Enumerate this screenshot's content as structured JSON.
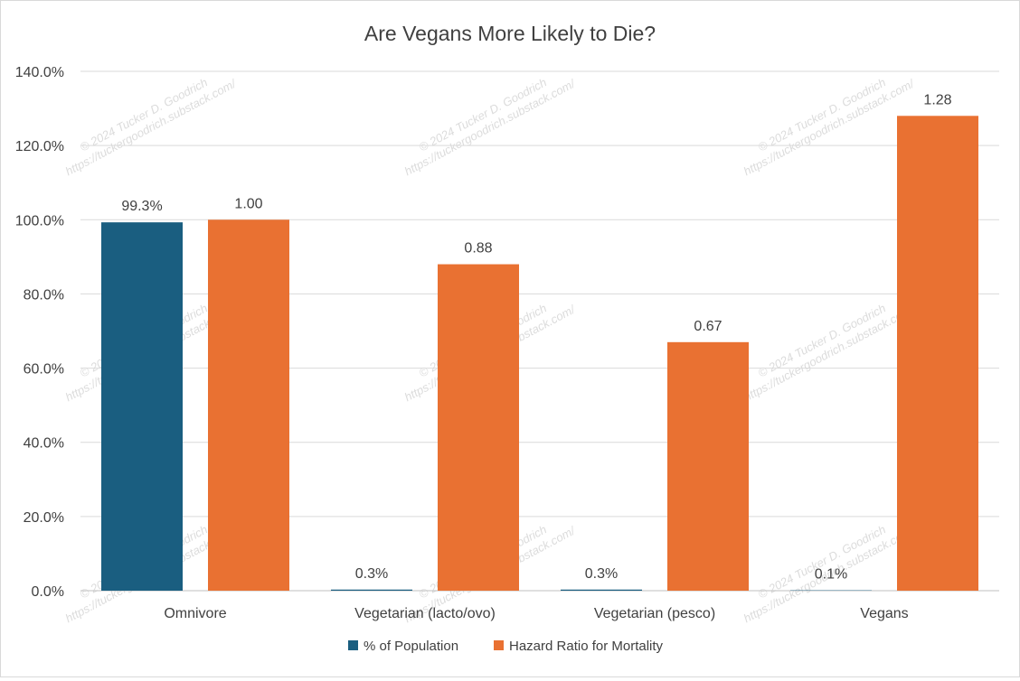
{
  "chart_data": {
    "type": "bar",
    "title": "Are Vegans More Likely to Die?",
    "categories": [
      "Omnivore",
      "Vegetarian (lacto/ovo)",
      "Vegetarian (pesco)",
      "Vegans"
    ],
    "series": [
      {
        "name": "% of Population",
        "color": "#1a5e80",
        "values": [
          0.993,
          0.003,
          0.003,
          0.001
        ],
        "labels": [
          "99.3%",
          "0.3%",
          "0.3%",
          "0.1%"
        ]
      },
      {
        "name": "Hazard Ratio for Mortality",
        "color": "#e97132",
        "values": [
          1.0,
          0.88,
          0.67,
          1.28
        ],
        "labels": [
          "1.00",
          "0.88",
          "0.67",
          "1.28"
        ]
      }
    ],
    "ylim": [
      0,
      1.4
    ],
    "yticks": [
      0,
      0.2,
      0.4,
      0.6,
      0.8,
      1.0,
      1.2,
      1.4
    ],
    "ytick_labels": [
      "0.0%",
      "20.0%",
      "40.0%",
      "60.0%",
      "80.0%",
      "100.0%",
      "120.0%",
      "140.0%"
    ],
    "grid": true,
    "legend_position": "bottom",
    "watermark": [
      "© 2024 Tucker D. Goodrich",
      "https://tuckergoodrich.substack.com/"
    ]
  }
}
